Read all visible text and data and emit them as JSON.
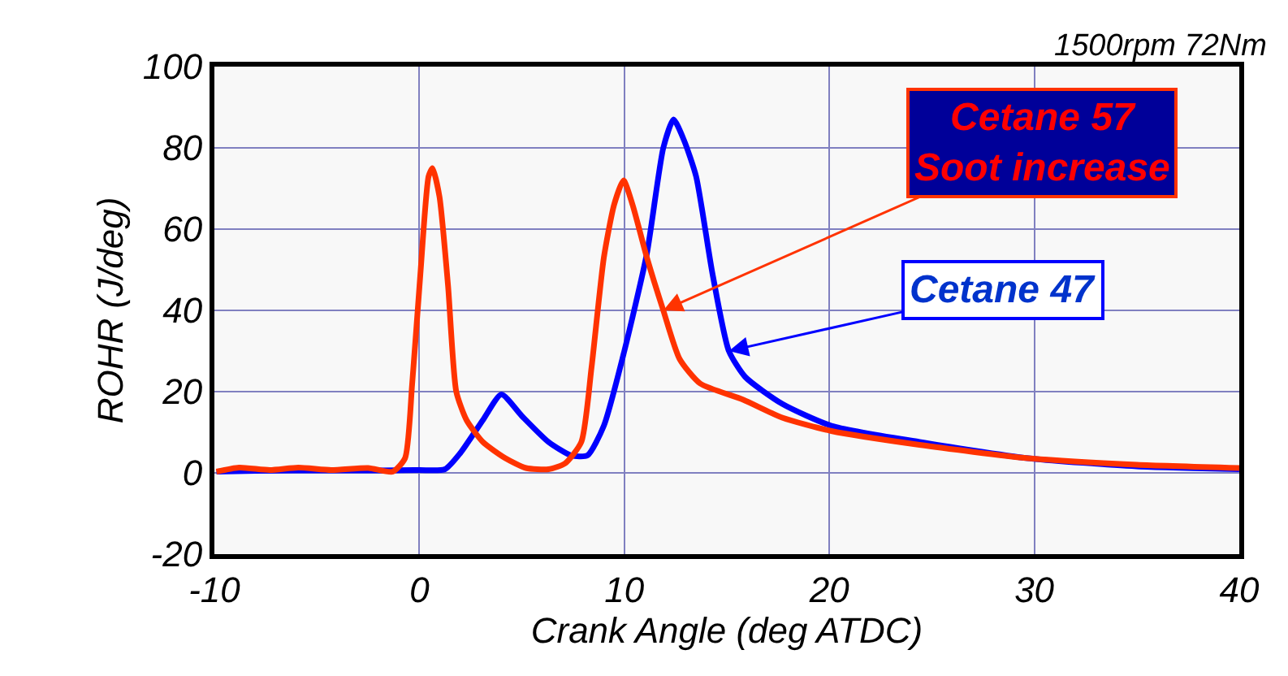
{
  "chart_data": {
    "type": "line",
    "xlabel": "Crank Angle (deg ATDC)",
    "ylabel": "ROHR (J/deg)",
    "xlim": [
      -10,
      40
    ],
    "xticks": [
      -10,
      0,
      10,
      20,
      30,
      40
    ],
    "ylim": [
      -20,
      100
    ],
    "yticks": [
      -20,
      0,
      20,
      40,
      60,
      80,
      100
    ],
    "grid": true,
    "legend": false,
    "marker": "none",
    "line_style": "solid",
    "annotations": [
      "1500rpm 72Nm",
      {
        "text": "Cetane 57\nSoot increase",
        "x": 11.9,
        "y": 40
      },
      {
        "text": "Cetane 47",
        "x": 15.1,
        "y": 30
      }
    ],
    "series": [
      {
        "color": "#0000ff",
        "x": [
          -9.9,
          -8,
          -6,
          -4,
          -2,
          0,
          1.25,
          2.0,
          3.1,
          4.0,
          5.0,
          6.3,
          7.4,
          8.2,
          9.0,
          10.0,
          11.1,
          11.9,
          12.4,
          12.9,
          13.5,
          14.3,
          15.1,
          15.9,
          17.7,
          20.1,
          24.4,
          29.7,
          35,
          40
        ],
        "values": [
          0.3,
          0.5,
          0.6,
          0.6,
          0.6,
          0.7,
          0.9,
          4.9,
          13,
          19.3,
          14,
          7.6,
          4.3,
          4.3,
          11.6,
          30,
          54,
          80,
          87,
          82,
          73,
          49,
          30,
          23.6,
          17,
          11.6,
          7.6,
          3.6,
          1.6,
          0.9
        ]
      },
      {
        "color": "#ff3300",
        "x": [
          -9.9,
          -8.8,
          -7.3,
          -5.9,
          -4.3,
          -2.5,
          -1.3,
          -0.7,
          -0.35,
          0.05,
          0.45,
          0.64,
          0.98,
          1.4,
          1.8,
          2.3,
          3.1,
          4.2,
          5.2,
          6.3,
          7.1,
          7.9,
          8.4,
          9.0,
          9.5,
          9.96,
          10.4,
          11.1,
          11.9,
          12.7,
          13.7,
          15.8,
          17.7,
          20.1,
          24.4,
          29.7,
          35,
          40
        ],
        "values": [
          0.3,
          1.3,
          0.7,
          1.3,
          0.7,
          1.2,
          0.3,
          3.6,
          22,
          49,
          73,
          75,
          68,
          46,
          20,
          13,
          7.6,
          3.6,
          1.2,
          0.9,
          2.3,
          7.6,
          26,
          53,
          66,
          72,
          66,
          53,
          40,
          28,
          22,
          18,
          13.6,
          10.3,
          6.9,
          3.6,
          2,
          1.2
        ]
      }
    ]
  }
}
